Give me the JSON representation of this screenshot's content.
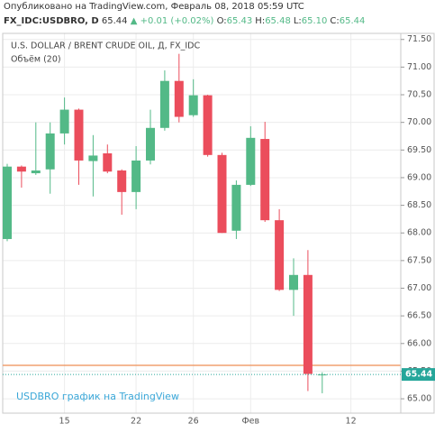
{
  "header": {
    "published": "Опубликовано на TradingView.com, Февраль 08, 2018 05:59 UTC",
    "symbol": "FX_IDC:USDBRO, D",
    "price": "65.44",
    "change": "▲ +0.01 (+0.02%)",
    "ohlc": [
      {
        "key": "O:",
        "value": "65.43"
      },
      {
        "key": "H:",
        "value": "65.48"
      },
      {
        "key": "L:",
        "value": "65.10"
      },
      {
        "key": "C:",
        "value": "65.44"
      }
    ]
  },
  "chart_data": {
    "type": "candlestick",
    "title": "U.S. DOLLAR / BRENT CRUDE OIL, Д, FX_IDC",
    "subtitle": "Объём (20)",
    "watermark": "USDBRO график на TradingView",
    "categories": [
      null,
      null,
      null,
      null,
      "15",
      null,
      null,
      null,
      null,
      "22",
      null,
      null,
      null,
      "26",
      null,
      null,
      null,
      "Фев",
      null,
      null,
      null,
      null,
      null,
      null,
      "12"
    ],
    "open": [
      67.89,
      69.2,
      69.08,
      69.15,
      69.8,
      70.23,
      69.3,
      69.44,
      69.13,
      68.74,
      69.31,
      69.9,
      70.75,
      70.13,
      70.49,
      69.41,
      68.04,
      68.87,
      69.7,
      68.23,
      66.97,
      67.24,
      65.43,
      null,
      null
    ],
    "high": [
      69.25,
      69.22,
      70.0,
      70.0,
      70.45,
      70.25,
      69.77,
      69.6,
      69.15,
      69.57,
      70.23,
      70.94,
      71.24,
      70.78,
      70.5,
      69.45,
      68.95,
      69.93,
      70.01,
      68.43,
      67.54,
      67.69,
      65.48,
      null,
      null
    ],
    "low": [
      67.85,
      68.82,
      69.05,
      68.71,
      69.6,
      68.87,
      68.66,
      69.08,
      68.33,
      68.43,
      69.24,
      69.85,
      70.0,
      70.1,
      69.38,
      68.0,
      67.89,
      68.85,
      68.2,
      66.95,
      66.5,
      65.14,
      65.1,
      null,
      null
    ],
    "close": [
      69.2,
      69.11,
      69.13,
      69.8,
      70.23,
      69.31,
      69.4,
      69.11,
      68.74,
      69.31,
      69.9,
      70.75,
      70.1,
      70.49,
      69.41,
      68.0,
      68.87,
      69.72,
      68.23,
      66.97,
      67.24,
      65.45,
      65.44,
      null,
      null
    ],
    "up_color": "#53b987",
    "down_color": "#eb4d5c",
    "ylim": [
      64.74,
      71.61
    ],
    "yticks": [
      {
        "value": 65,
        "label": "65.00"
      },
      {
        "value": 65.5,
        "label": "65.50"
      },
      {
        "value": 66,
        "label": "66.00"
      },
      {
        "value": 66.5,
        "label": "66.50"
      },
      {
        "value": 67,
        "label": "67.00"
      },
      {
        "value": 67.5,
        "label": "67.50"
      },
      {
        "value": 68,
        "label": "68.00"
      },
      {
        "value": 68.5,
        "label": "68.50"
      },
      {
        "value": 69,
        "label": "69.00"
      },
      {
        "value": 69.5,
        "label": "69.50"
      },
      {
        "value": 70,
        "label": "70.00"
      },
      {
        "value": 70.5,
        "label": "70.50"
      },
      {
        "value": 71,
        "label": "71.00"
      },
      {
        "value": 71.5,
        "label": "71.50"
      }
    ],
    "grid": true,
    "last_price_label": "65.44"
  }
}
